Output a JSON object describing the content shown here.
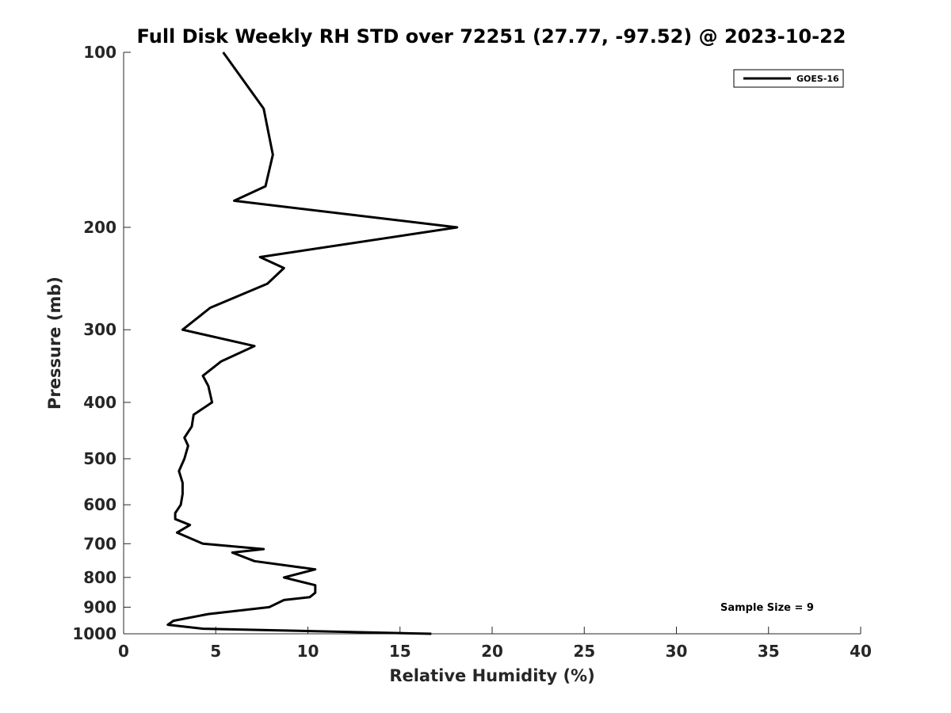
{
  "chart_data": {
    "type": "line",
    "title": "Full Disk Weekly RH STD over 72251 (27.77, -97.52) @ 2023-10-22",
    "xlabel": "Relative Humidity (%)",
    "ylabel": "Pressure (mb)",
    "xlim": [
      0,
      40
    ],
    "ylim": [
      100,
      1000
    ],
    "y_scale": "log",
    "y_direction": "reversed",
    "x_ticks": [
      "0",
      "5",
      "10",
      "15",
      "20",
      "25",
      "30",
      "35",
      "40"
    ],
    "y_ticks": [
      "100",
      "200",
      "300",
      "400",
      "500",
      "600",
      "700",
      "800",
      "900",
      "1000"
    ],
    "grid": false,
    "legend": "top-right",
    "series": [
      {
        "name": "GOES-16",
        "color": "#000000",
        "x": [
          5.4,
          7.6,
          8.1,
          7.7,
          6.0,
          18.1,
          7.4,
          8.7,
          7.8,
          4.7,
          3.2,
          7.1,
          5.3,
          4.3,
          4.6,
          4.8,
          3.8,
          3.7,
          3.3,
          3.5,
          3.3,
          3.0,
          3.2,
          3.2,
          3.1,
          2.8,
          2.8,
          3.6,
          2.9,
          4.3,
          7.6,
          5.9,
          7.1,
          10.4,
          8.7,
          10.4,
          10.4,
          10.1,
          8.7,
          7.9,
          4.6,
          2.7,
          2.4,
          4.3,
          16.7
        ],
        "y": [
          100,
          125,
          150,
          170,
          180,
          200,
          225,
          235,
          250,
          275,
          300,
          320,
          340,
          360,
          375,
          400,
          420,
          440,
          460,
          475,
          500,
          525,
          550,
          575,
          600,
          620,
          635,
          650,
          670,
          700,
          715,
          725,
          750,
          775,
          800,
          825,
          850,
          865,
          875,
          900,
          925,
          950,
          965,
          980,
          1000
        ]
      }
    ],
    "annotations": [
      "Sample Size = 9"
    ]
  }
}
